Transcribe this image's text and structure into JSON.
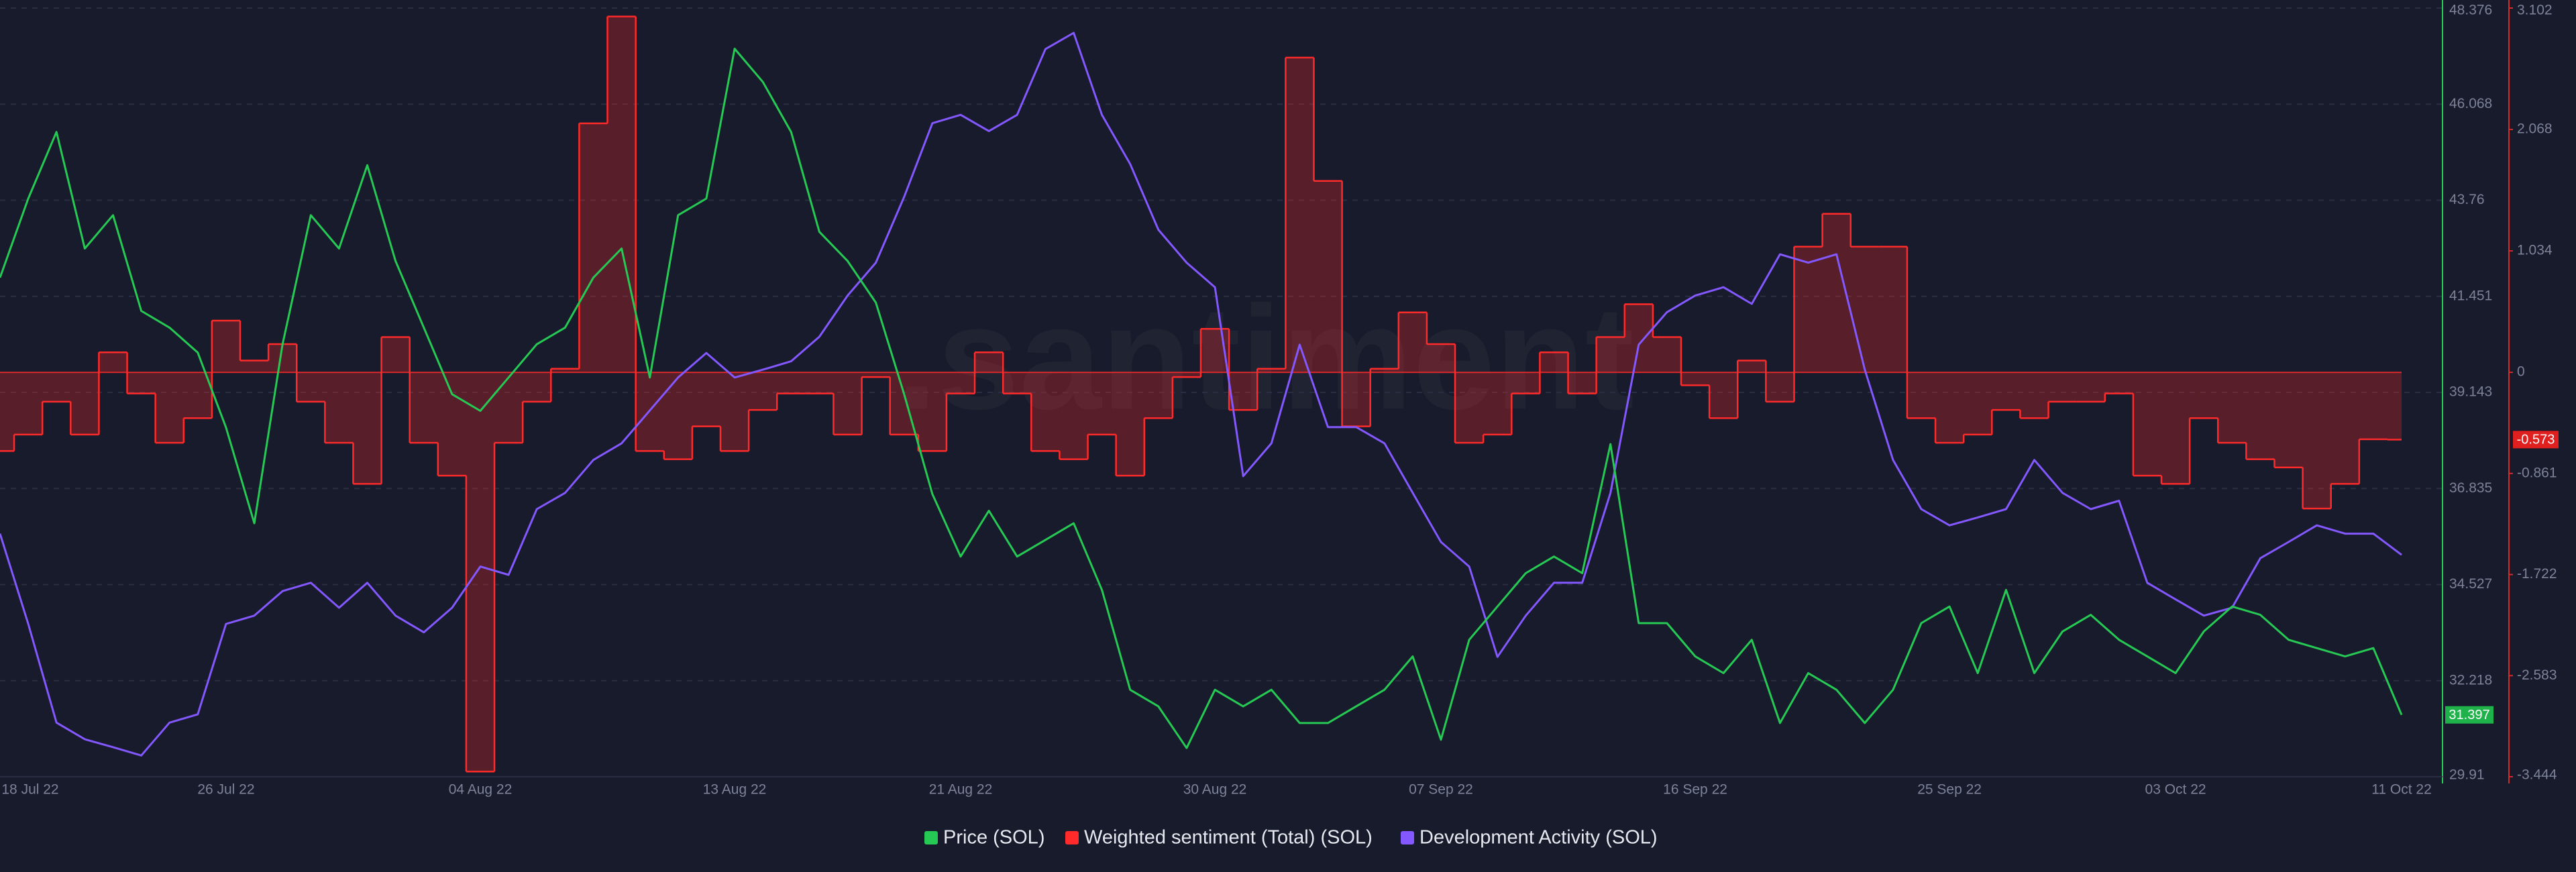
{
  "chart_data": {
    "type": "line",
    "watermark": ".santiment",
    "categories": [
      "18 Jul 22",
      null,
      null,
      null,
      null,
      null,
      null,
      null,
      "26 Jul 22",
      null,
      null,
      null,
      null,
      null,
      null,
      null,
      null,
      "04 Aug 22",
      null,
      null,
      null,
      null,
      null,
      null,
      null,
      null,
      "13 Aug 22",
      null,
      null,
      null,
      null,
      null,
      null,
      null,
      "21 Aug 22",
      null,
      null,
      null,
      null,
      null,
      null,
      null,
      null,
      "30 Aug 22",
      null,
      null,
      null,
      null,
      null,
      null,
      null,
      "07 Sep 22",
      null,
      null,
      null,
      null,
      null,
      null,
      null,
      null,
      "16 Sep 22",
      null,
      null,
      null,
      null,
      null,
      null,
      null,
      null,
      "25 Sep 22",
      null,
      null,
      null,
      null,
      null,
      null,
      null,
      "03 Oct 22",
      null,
      null,
      null,
      null,
      null,
      null,
      null,
      "11 Oct 22"
    ],
    "series": [
      {
        "name": "Price (SOL)",
        "color": "#26c953",
        "axis": "y",
        "style": "line",
        "values": [
          41.9,
          43.8,
          45.4,
          42.6,
          43.4,
          41.1,
          40.7,
          40.1,
          38.3,
          36.0,
          40.3,
          43.4,
          42.6,
          44.6,
          42.3,
          40.7,
          39.1,
          38.7,
          39.5,
          40.3,
          40.7,
          41.9,
          42.6,
          39.5,
          43.4,
          43.8,
          47.4,
          46.6,
          45.4,
          43.0,
          42.3,
          41.3,
          39.1,
          36.7,
          35.2,
          36.3,
          35.2,
          35.6,
          36.0,
          34.4,
          32.0,
          31.6,
          30.6,
          32.0,
          31.6,
          32.0,
          31.2,
          31.2,
          31.6,
          32.0,
          32.8,
          30.8,
          33.2,
          34.0,
          34.8,
          35.2,
          34.8,
          37.9,
          33.6,
          33.6,
          32.8,
          32.4,
          33.2,
          31.2,
          32.4,
          32.0,
          31.2,
          32.0,
          33.6,
          34.0,
          32.4,
          34.4,
          32.4,
          33.4,
          33.8,
          33.2,
          32.8,
          32.4,
          33.4,
          34.0,
          33.8,
          33.2,
          33.0,
          32.8,
          33.0,
          31.397
        ]
      },
      {
        "name": "Weighted sentiment (Total) (SOL)",
        "color": "#ff2a2a",
        "axis": "y2",
        "style": "step-area",
        "values": [
          -0.67,
          -0.53,
          -0.25,
          -0.53,
          0.17,
          -0.18,
          -0.6,
          -0.39,
          0.44,
          0.1,
          0.24,
          -0.25,
          -0.6,
          -0.95,
          0.3,
          -0.6,
          -0.88,
          -3.4,
          -0.6,
          -0.25,
          0.03,
          2.12,
          3.03,
          -0.67,
          -0.74,
          -0.46,
          -0.67,
          -0.32,
          -0.18,
          -0.18,
          -0.53,
          -0.04,
          -0.53,
          -0.67,
          -0.18,
          0.17,
          -0.18,
          -0.67,
          -0.74,
          -0.53,
          -0.88,
          -0.39,
          -0.04,
          0.37,
          -0.32,
          0.03,
          2.68,
          1.63,
          -0.46,
          0.03,
          0.51,
          0.24,
          -0.6,
          -0.53,
          -0.18,
          0.17,
          -0.18,
          0.3,
          0.58,
          0.3,
          -0.11,
          -0.39,
          0.1,
          -0.25,
          1.07,
          1.35,
          1.07,
          1.07,
          -0.39,
          -0.6,
          -0.53,
          -0.32,
          -0.39,
          -0.25,
          -0.25,
          -0.18,
          -0.88,
          -0.95,
          -0.39,
          -0.6,
          -0.74,
          -0.81,
          -1.16,
          -0.95,
          -0.57,
          -0.573
        ]
      },
      {
        "name": "Development Activity (SOL)",
        "color": "#8358ff",
        "axis": "y",
        "style": "line",
        "values": [
          35.75,
          33.58,
          31.21,
          30.81,
          30.62,
          30.42,
          31.21,
          31.41,
          33.58,
          33.78,
          34.37,
          34.57,
          33.97,
          34.57,
          33.78,
          33.38,
          33.97,
          34.96,
          34.76,
          36.34,
          36.73,
          37.52,
          37.92,
          38.71,
          39.5,
          40.09,
          39.5,
          39.69,
          39.89,
          40.48,
          41.47,
          42.26,
          43.84,
          45.61,
          45.81,
          45.42,
          45.81,
          47.39,
          47.78,
          45.81,
          44.63,
          43.05,
          42.26,
          41.67,
          37.13,
          37.92,
          40.29,
          38.31,
          38.31,
          37.92,
          36.73,
          35.55,
          34.96,
          32.79,
          33.78,
          34.57,
          34.57,
          36.73,
          40.29,
          41.07,
          41.47,
          41.67,
          41.27,
          42.46,
          42.26,
          42.46,
          39.69,
          37.52,
          36.34,
          35.95,
          36.14,
          36.34,
          37.52,
          36.73,
          36.34,
          36.54,
          34.57,
          34.17,
          33.78,
          33.97,
          35.16,
          35.55,
          35.95,
          35.75,
          35.75,
          35.24
        ]
      }
    ],
    "ylim": [
      29.91,
      48.376
    ],
    "yticks": [
      29.91,
      32.218,
      34.527,
      36.835,
      39.143,
      41.451,
      43.76,
      46.068,
      48.376
    ],
    "y2lim": [
      -3.444,
      3.102
    ],
    "y2ticks": [
      -3.444,
      -2.583,
      -1.722,
      -0.861,
      0,
      1.034,
      2.068,
      3.102
    ],
    "grid": true,
    "legend": "bottom"
  }
}
